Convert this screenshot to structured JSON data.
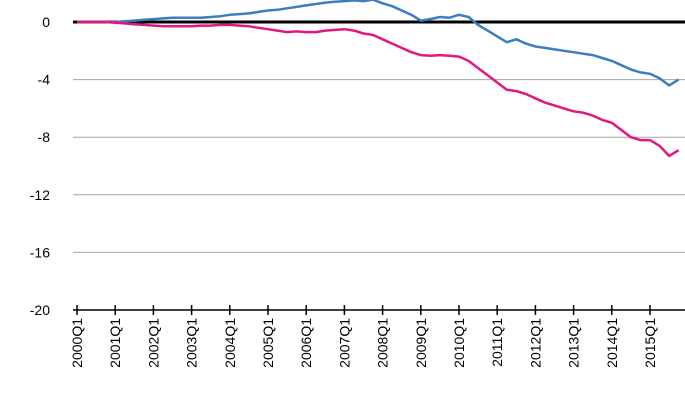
{
  "chart_data": {
    "type": "line",
    "categories": [
      "2000Q1",
      null,
      null,
      null,
      "2001Q1",
      null,
      null,
      null,
      "2002Q1",
      null,
      null,
      null,
      "2003Q1",
      null,
      null,
      null,
      "2004Q1",
      null,
      null,
      null,
      "2005Q1",
      null,
      null,
      null,
      "2006Q1",
      null,
      null,
      null,
      "2007Q1",
      null,
      null,
      null,
      "2008Q1",
      null,
      null,
      null,
      "2009Q1",
      null,
      null,
      null,
      "2010Q1",
      null,
      null,
      null,
      "2011Q1",
      null,
      null,
      null,
      "2012Q1",
      null,
      null,
      null,
      "2013Q1",
      null,
      null,
      null,
      "2014Q1",
      null,
      null,
      null,
      "2015Q1",
      null,
      null,
      null
    ],
    "series": [
      {
        "color": "#3b7dc0",
        "values": [
          0,
          0,
          0,
          0,
          0,
          0.05,
          0.1,
          0.15,
          0.2,
          0.25,
          0.3,
          0.3,
          0.3,
          0.3,
          0.35,
          0.4,
          0.5,
          0.55,
          0.6,
          0.7,
          0.8,
          0.85,
          0.95,
          1.05,
          1.15,
          1.25,
          1.35,
          1.4,
          1.45,
          1.5,
          1.45,
          1.55,
          1.3,
          1.1,
          0.8,
          0.5,
          0.1,
          0.2,
          0.35,
          0.3,
          0.5,
          0.35,
          -0.2,
          -0.6,
          -1.0,
          -1.4,
          -1.2,
          -1.5,
          -1.7,
          -1.8,
          -1.9,
          -2.0,
          -2.1,
          -2.2,
          -2.3,
          -2.5,
          -2.7,
          -3.0,
          -3.3,
          -3.5,
          -3.6,
          -3.9,
          -4.4,
          -4.0
        ]
      },
      {
        "color": "#e3177f",
        "values": [
          0,
          0,
          0,
          0,
          -0.05,
          -0.1,
          -0.15,
          -0.2,
          -0.25,
          -0.3,
          -0.3,
          -0.3,
          -0.3,
          -0.25,
          -0.25,
          -0.2,
          -0.2,
          -0.25,
          -0.3,
          -0.4,
          -0.5,
          -0.6,
          -0.7,
          -0.65,
          -0.7,
          -0.7,
          -0.6,
          -0.55,
          -0.5,
          -0.6,
          -0.8,
          -0.9,
          -1.2,
          -1.5,
          -1.8,
          -2.1,
          -2.3,
          -2.35,
          -2.3,
          -2.35,
          -2.4,
          -2.7,
          -3.2,
          -3.7,
          -4.2,
          -4.7,
          -4.8,
          -5.0,
          -5.3,
          -5.6,
          -5.8,
          -6.0,
          -6.2,
          -6.3,
          -6.5,
          -6.8,
          -7.0,
          -7.5,
          -8.0,
          -8.2,
          -8.2,
          -8.6,
          -9.3,
          -8.9
        ]
      }
    ],
    "ylim": [
      -20,
      0
    ],
    "yticks": [
      0,
      -4,
      -8,
      -12,
      -16,
      -20
    ],
    "grid": true
  }
}
